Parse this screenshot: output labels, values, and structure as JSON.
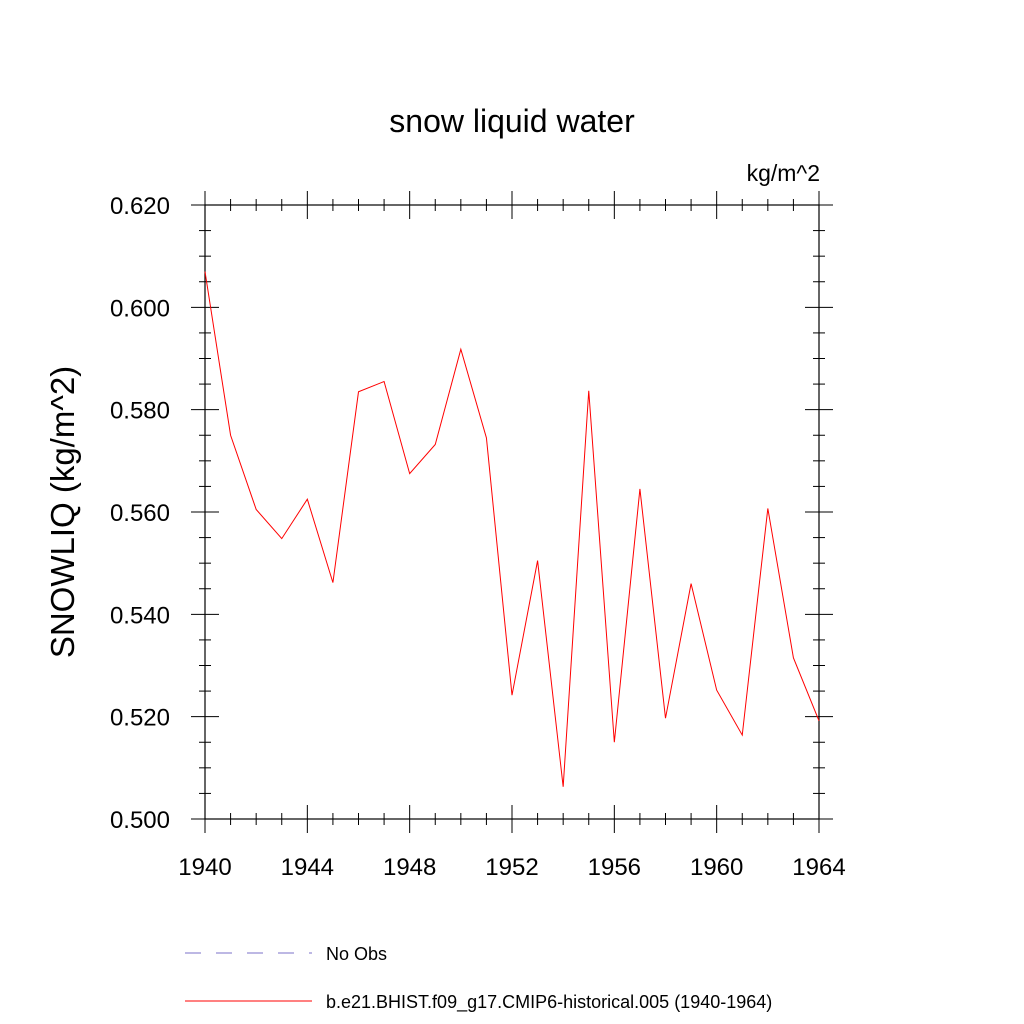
{
  "chart_data": {
    "type": "line",
    "title": "snow liquid water",
    "units_label": "kg/m^2",
    "xlabel": "",
    "ylabel": "SNOWLIQ  (kg/m^2)",
    "xlim": [
      1940,
      1964
    ],
    "ylim": [
      0.5,
      0.62
    ],
    "x_ticks": [
      1940,
      1944,
      1948,
      1952,
      1956,
      1960,
      1964
    ],
    "x_tick_labels": [
      "1940",
      "1944",
      "1948",
      "1952",
      "1956",
      "1960",
      "1964"
    ],
    "y_ticks": [
      0.5,
      0.52,
      0.54,
      0.56,
      0.58,
      0.6,
      0.62
    ],
    "y_tick_labels": [
      "0.500",
      "0.520",
      "0.540",
      "0.560",
      "0.580",
      "0.600",
      "0.620"
    ],
    "grid": false,
    "legend_position": "bottom",
    "series": [
      {
        "name": "b.e21.BHIST.f09_g17.CMIP6-historical.005 (1940-1964)",
        "color": "#ff0000",
        "style": "solid",
        "x": [
          1940,
          1941,
          1942,
          1943,
          1944,
          1945,
          1946,
          1947,
          1948,
          1949,
          1950,
          1951,
          1952,
          1953,
          1954,
          1955,
          1956,
          1957,
          1958,
          1959,
          1960,
          1961,
          1962,
          1963,
          1964
        ],
        "values": [
          0.607,
          0.575,
          0.5605,
          0.5548,
          0.5625,
          0.5462,
          0.5835,
          0.5855,
          0.5675,
          0.5732,
          0.5918,
          0.5745,
          0.5242,
          0.5505,
          0.5063,
          0.5837,
          0.515,
          0.5645,
          0.5197,
          0.546,
          0.5252,
          0.5164,
          0.5607,
          0.5315,
          0.5192
        ]
      }
    ],
    "legend": [
      {
        "label": "No Obs",
        "color": "#7b72c8",
        "style": "dashed"
      },
      {
        "label": "b.e21.BHIST.f09_g17.CMIP6-historical.005 (1940-1964)",
        "color": "#ff0000",
        "style": "solid"
      }
    ]
  }
}
